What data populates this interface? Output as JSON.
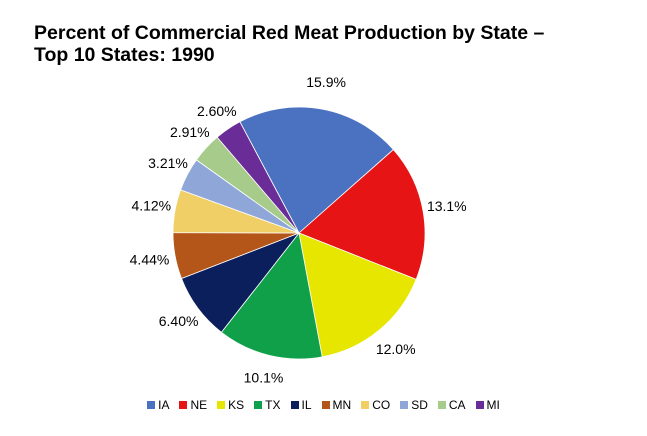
{
  "chart_data": {
    "type": "pie",
    "title": "Percent of Commercial Red Meat Production by State –",
    "subtitle": "Top 10 States: 1990",
    "categories": [
      "IA",
      "NE",
      "KS",
      "TX",
      "IL",
      "MN",
      "CO",
      "SD",
      "CA",
      "MI"
    ],
    "values": [
      15.9,
      13.1,
      12.0,
      10.1,
      6.4,
      4.44,
      4.12,
      3.21,
      2.91,
      2.6
    ],
    "labels": [
      "15.9%",
      "13.1%",
      "12.0%",
      "10.1%",
      "6.40%",
      "4.44%",
      "4.12%",
      "3.21%",
      "2.91%",
      "2.60%"
    ],
    "colors": [
      "#4a72c0",
      "#e61414",
      "#e6e600",
      "#10a04a",
      "#0b1f5c",
      "#b4551a",
      "#f0cf66",
      "#8fa6d8",
      "#a6cb8a",
      "#6a2c96"
    ],
    "legend_position": "bottom"
  }
}
